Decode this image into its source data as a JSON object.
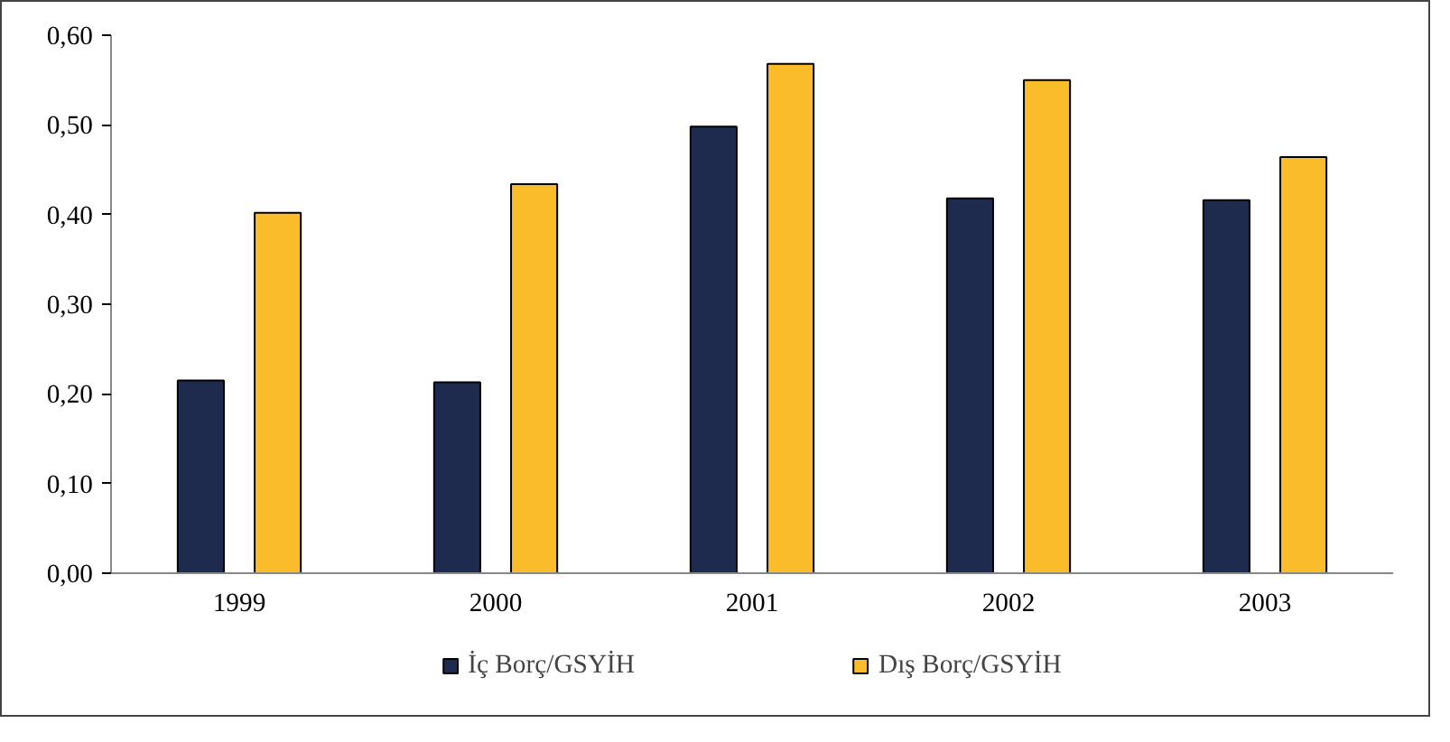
{
  "chart_data": {
    "type": "bar",
    "categories": [
      "1999",
      "2000",
      "2001",
      "2002",
      "2003"
    ],
    "series": [
      {
        "name": "İç Borç/GSYİH",
        "color": "#1f2a4f",
        "values": [
          0.215,
          0.213,
          0.498,
          0.418,
          0.416
        ]
      },
      {
        "name": "Dış Borç/GSYİH",
        "color": "#fbbc2c",
        "values": [
          0.402,
          0.434,
          0.568,
          0.55,
          0.464
        ]
      }
    ],
    "ylim": [
      0,
      0.6
    ],
    "yticks": [
      {
        "value": 0,
        "label": "0,00"
      },
      {
        "value": 0.1,
        "label": "0,10"
      },
      {
        "value": 0.2,
        "label": "0,20"
      },
      {
        "value": 0.3,
        "label": "0,30"
      },
      {
        "value": 0.4,
        "label": "0,40"
      },
      {
        "value": 0.5,
        "label": "0,50"
      },
      {
        "value": 0.6,
        "label": "0,60"
      }
    ],
    "grid": false,
    "legend": "bottom"
  }
}
